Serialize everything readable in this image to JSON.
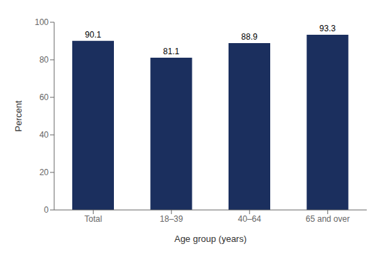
{
  "chart_data": {
    "type": "bar",
    "categories": [
      "Total",
      "18–39",
      "40–64",
      "65 and over"
    ],
    "values": [
      90.1,
      81.1,
      88.9,
      93.3
    ],
    "color": "#1b2f5e",
    "xlabel": "Age group (years)",
    "ylabel": "Percent",
    "ylim": [
      0,
      100
    ],
    "yticks": [
      0,
      20,
      40,
      60,
      80,
      100
    ],
    "grid": false,
    "data_labels": true
  }
}
